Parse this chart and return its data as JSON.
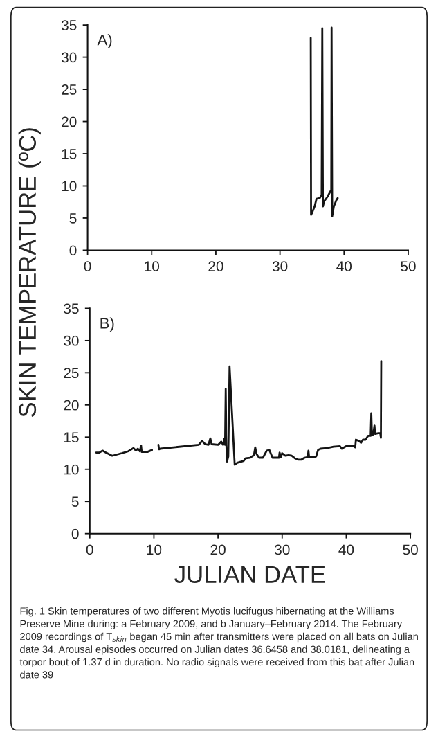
{
  "chart_data": [
    {
      "type": "line",
      "title": "A)",
      "ylabel": "SKIN TEMPERATURE (ºC)",
      "xlim": [
        0,
        50
      ],
      "xticks": [
        0,
        10,
        20,
        30,
        40,
        50
      ],
      "ylim": [
        0,
        35
      ],
      "yticks": [
        0,
        5,
        10,
        15,
        20,
        25,
        30,
        35
      ],
      "grid": false,
      "legend": false,
      "series": [
        {
          "color": "#141414",
          "x": [
            34.8,
            34.85,
            35.0,
            35.4,
            35.7,
            36.2,
            36.5,
            36.6,
            36.7,
            36.9,
            37.4,
            38.0,
            38.05,
            38.15,
            38.4,
            38.8,
            39.0
          ],
          "values": [
            33,
            5.5,
            5.8,
            6.8,
            8.0,
            8.1,
            8.6,
            34.5,
            6.8,
            7.6,
            8.3,
            9.4,
            34.6,
            5.3,
            6.8,
            7.8,
            8.1
          ]
        }
      ]
    },
    {
      "type": "line",
      "title": "B)",
      "xlabel": "JULIAN DATE",
      "xlim": [
        0,
        50
      ],
      "xticks": [
        0,
        10,
        20,
        30,
        40,
        50
      ],
      "ylim": [
        0,
        35
      ],
      "yticks": [
        0,
        5,
        10,
        15,
        20,
        25,
        30,
        35
      ],
      "grid": false,
      "legend": false,
      "annotations": [
        "Fig. 1 Skin temperatures of two different Myotis lucifugus hibernating at the Williams Preserve Mine during: a February 2009, and b January–February 2014. The February 2009 recordings of T$_{skin}$ began 45 min after transmitters were placed on all bats on Julian date 34. Arousal episodes occurred on Julian dates 36.6458 and 38.0181, delineating a torpor bout of 1.37 d in duration. No radio signals were received from this bat after Julian date 39"
      ],
      "series": [
        {
          "color": "#141414",
          "x": [
            1.0,
            1.5,
            2.0,
            2.5,
            3.5,
            5.0,
            6.0,
            6.8,
            7.2,
            7.5,
            7.8,
            8.0,
            8.1,
            9.0,
            9.7,
            10.2,
            10.7,
            10.8,
            11.0,
            17.0,
            17.5,
            18.0,
            18.5,
            18.8,
            19.0,
            20.0,
            20.5,
            20.8,
            21.0,
            21.1,
            21.2,
            21.3,
            21.4,
            21.6,
            21.8,
            22.6,
            23.0,
            24.0,
            24.3,
            25.0,
            25.6,
            25.8,
            26.0,
            26.4,
            27.0,
            27.6,
            28.0,
            28.5,
            29.5,
            29.6,
            29.8,
            30.0,
            30.5,
            31.0,
            31.5,
            32.0,
            32.5,
            33.0,
            33.5,
            34.0,
            34.1,
            34.2,
            35.0,
            35.3,
            35.6,
            36.0,
            37.0,
            38.0,
            39.0,
            39.3,
            40.0,
            41.0,
            41.4,
            41.5,
            42.0,
            42.3,
            42.6,
            43.0,
            43.4,
            43.8,
            43.9,
            44.0,
            44.2,
            44.4,
            44.5,
            45.0,
            45.3,
            45.4,
            45.45
          ],
          "values": [
            12.6,
            12.6,
            12.9,
            12.6,
            12.1,
            12.5,
            12.8,
            13.3,
            12.9,
            13.2,
            12.8,
            13.7,
            12.7,
            12.7,
            13.0,
            null,
            13.8,
            13.1,
            13.2,
            13.8,
            14.4,
            13.9,
            13.8,
            14.8,
            13.9,
            13.8,
            14.3,
            13.8,
            14.8,
            13.8,
            22.5,
            13.8,
            11.2,
            12.0,
            26.0,
            10.7,
            11.0,
            11.3,
            11.7,
            11.8,
            12.2,
            13.4,
            12.4,
            11.8,
            11.8,
            12.9,
            13.0,
            11.8,
            11.8,
            12.6,
            11.9,
            12.5,
            12.1,
            12.2,
            12.1,
            11.7,
            11.5,
            11.5,
            11.8,
            11.9,
            12.9,
            11.9,
            11.9,
            12.0,
            13.0,
            13.2,
            13.3,
            13.5,
            13.6,
            13.2,
            13.6,
            13.7,
            13.4,
            14.6,
            14.4,
            14.1,
            14.6,
            14.6,
            15.2,
            15.2,
            18.7,
            15.3,
            15.4,
            16.8,
            15.5,
            15.6,
            15.6,
            14.9,
            26.8
          ]
        }
      ]
    }
  ]
}
